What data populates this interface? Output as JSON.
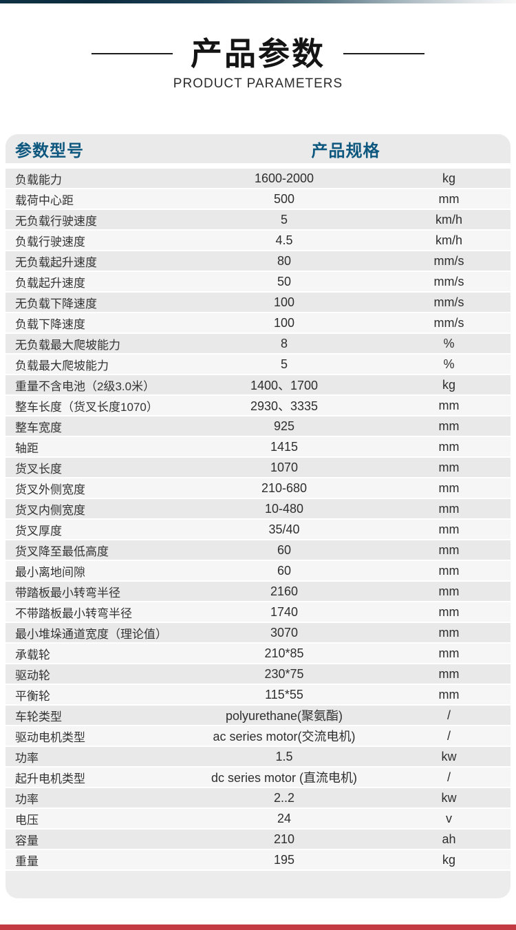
{
  "page": {
    "title_cn": "产品参数",
    "title_en": "PRODUCT PARAMETERS"
  },
  "colors": {
    "top_bar_navy": "#0b2b3e",
    "accent_red": "#c43a43",
    "header_text_blue": "#0e587f",
    "row_gray": "#e9e9e9",
    "row_light": "#f6f6f6"
  },
  "table": {
    "header": {
      "left": "参数型号",
      "right": "产品规格"
    },
    "rows": [
      {
        "label": "负载能力",
        "value": "1600-2000",
        "unit": "kg"
      },
      {
        "label": "载荷中心距",
        "value": "500",
        "unit": "mm"
      },
      {
        "label": "无负载行驶速度",
        "value": "5",
        "unit": "km/h"
      },
      {
        "label": "负载行驶速度",
        "value": "4.5",
        "unit": "km/h"
      },
      {
        "label": "无负载起升速度",
        "value": "80",
        "unit": "mm/s"
      },
      {
        "label": "负载起升速度",
        "value": "50",
        "unit": "mm/s"
      },
      {
        "label": "无负载下降速度",
        "value": "100",
        "unit": "mm/s"
      },
      {
        "label": "负载下降速度",
        "value": "100",
        "unit": "mm/s"
      },
      {
        "label": "无负载最大爬坡能力",
        "value": "8",
        "unit": "%"
      },
      {
        "label": "负载最大爬坡能力",
        "value": "5",
        "unit": "%"
      },
      {
        "label": "重量不含电池（2级3.0米）",
        "value": "1400、1700",
        "unit": "kg"
      },
      {
        "label": "整车长度（货叉长度1070）",
        "value": "2930、3335",
        "unit": "mm"
      },
      {
        "label": "整车宽度",
        "value": "925",
        "unit": "mm"
      },
      {
        "label": "轴距",
        "value": "1415",
        "unit": "mm"
      },
      {
        "label": "货叉长度",
        "value": "1070",
        "unit": "mm"
      },
      {
        "label": "货叉外侧宽度",
        "value": "210-680",
        "unit": "mm"
      },
      {
        "label": "货叉内侧宽度",
        "value": "10-480",
        "unit": "mm"
      },
      {
        "label": "货叉厚度",
        "value": "35/40",
        "unit": "mm"
      },
      {
        "label": "货叉降至最低高度",
        "value": "60",
        "unit": "mm"
      },
      {
        "label": "最小离地间隙",
        "value": "60",
        "unit": "mm"
      },
      {
        "label": "带踏板最小转弯半径",
        "value": "2160",
        "unit": "mm"
      },
      {
        "label": "不带踏板最小转弯半径",
        "value": "1740",
        "unit": "mm"
      },
      {
        "label": "最小堆垛通道宽度（理论值）",
        "value": "3070",
        "unit": "mm"
      },
      {
        "label": "承载轮",
        "value": "210*85",
        "unit": "mm"
      },
      {
        "label": "驱动轮",
        "value": "230*75",
        "unit": "mm"
      },
      {
        "label": "平衡轮",
        "value": "115*55",
        "unit": "mm"
      },
      {
        "label": "车轮类型",
        "value": "polyurethane(聚氨酯)",
        "unit": "/"
      },
      {
        "label": "驱动电机类型",
        "value": "ac series motor(交流电机)",
        "unit": "/"
      },
      {
        "label": "功率",
        "value": "1.5",
        "unit": "kw"
      },
      {
        "label": "起升电机类型",
        "value": "dc series motor (直流电机)",
        "unit": "/"
      },
      {
        "label": "功率",
        "value": "2..2",
        "unit": "kw"
      },
      {
        "label": "电压",
        "value": "24",
        "unit": "v"
      },
      {
        "label": "容量",
        "value": "210",
        "unit": "ah"
      },
      {
        "label": "重量",
        "value": "195",
        "unit": "kg"
      }
    ]
  }
}
